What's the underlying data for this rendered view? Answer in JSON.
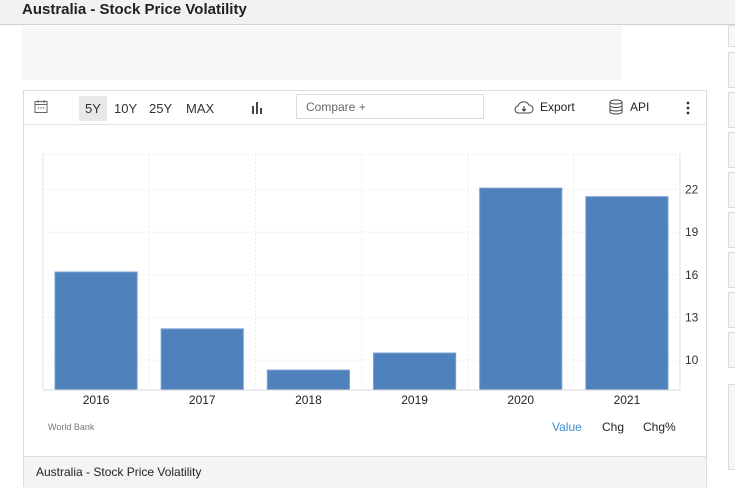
{
  "header": {
    "title": "Australia - Stock Price Volatility"
  },
  "toolbar": {
    "calendar_icon": "calendar-icon",
    "ranges": [
      {
        "label": "5Y",
        "active": true
      },
      {
        "label": "10Y",
        "active": false
      },
      {
        "label": "25Y",
        "active": false
      },
      {
        "label": "MAX",
        "active": false
      }
    ],
    "chart_type_icon": "bar-chart-icon",
    "compare_placeholder": "Compare +",
    "export_label": "Export",
    "export_icon": "cloud-download-icon",
    "api_label": "API",
    "api_icon": "database-icon",
    "more_icon": "vertical-ellipsis-icon"
  },
  "chart_footer": {
    "source": "World Bank",
    "toggles": [
      {
        "label": "Value",
        "active": true
      },
      {
        "label": "Chg",
        "active": false
      },
      {
        "label": "Chg%",
        "active": false
      }
    ]
  },
  "footer": {
    "title": "Australia - Stock Price Volatility"
  },
  "colors": {
    "bar": "#4f81bd",
    "accent": "#3a8fd8",
    "grid": "#ebebeb"
  },
  "chart_data": {
    "type": "bar",
    "title": "Australia - Stock Price Volatility",
    "categories": [
      "2016",
      "2017",
      "2018",
      "2019",
      "2020",
      "2021"
    ],
    "values": [
      16.2,
      12.2,
      9.3,
      10.5,
      22.1,
      21.5
    ],
    "xlabel": "",
    "ylabel": "",
    "yticks": [
      10,
      13,
      16,
      19,
      22
    ],
    "ylim": [
      7.9,
      24.5
    ],
    "y_axis_position": "right",
    "grid": true,
    "legend": "none",
    "source": "World Bank"
  }
}
